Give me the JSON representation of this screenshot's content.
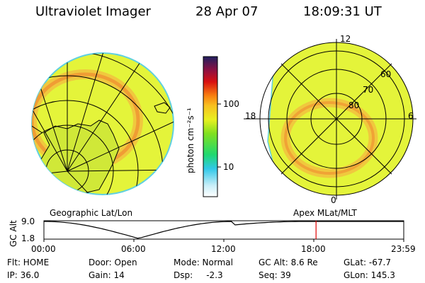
{
  "header": {
    "instrument": "Ultraviolet Imager",
    "date": "28 Apr 07",
    "time": "18:09:31 UT"
  },
  "panels": {
    "left_label": "Geographic Lat/Lon",
    "right_label": "Apex MLat/MLT"
  },
  "colorbar": {
    "unit_label": "photon cm⁻²s⁻¹",
    "ticks": [
      "100",
      "10"
    ]
  },
  "polar_labels": {
    "mlt": [
      "12",
      "18",
      "6",
      "0"
    ],
    "mlat": [
      "60",
      "70",
      "80"
    ]
  },
  "altitude_plot": {
    "ylabel": "GC Alt",
    "yticks": [
      "9.0",
      "1.8"
    ],
    "xticks": [
      "00:00",
      "06:00",
      "12:00",
      "18:00",
      "23:59"
    ],
    "current_time_hours": 18.15,
    "minimum_time_hours": 6.3,
    "ylim": [
      1.8,
      9.0
    ],
    "colors": {
      "marker": "#e00000"
    }
  },
  "status": {
    "row1": [
      {
        "label": "Flt: HOME"
      },
      {
        "label": "Door: Open"
      },
      {
        "label": "Mode: Normal"
      },
      {
        "label": "GC Alt: 8.6 Re"
      },
      {
        "label": "GLat: -67.7"
      }
    ],
    "row2": [
      {
        "label": "IP: 36.0"
      },
      {
        "label": "Gain: 14"
      },
      {
        "label": "Dsp:     -2.3"
      },
      {
        "label": "Seq: 39"
      },
      {
        "label": "GLon: 145.3"
      }
    ]
  }
}
